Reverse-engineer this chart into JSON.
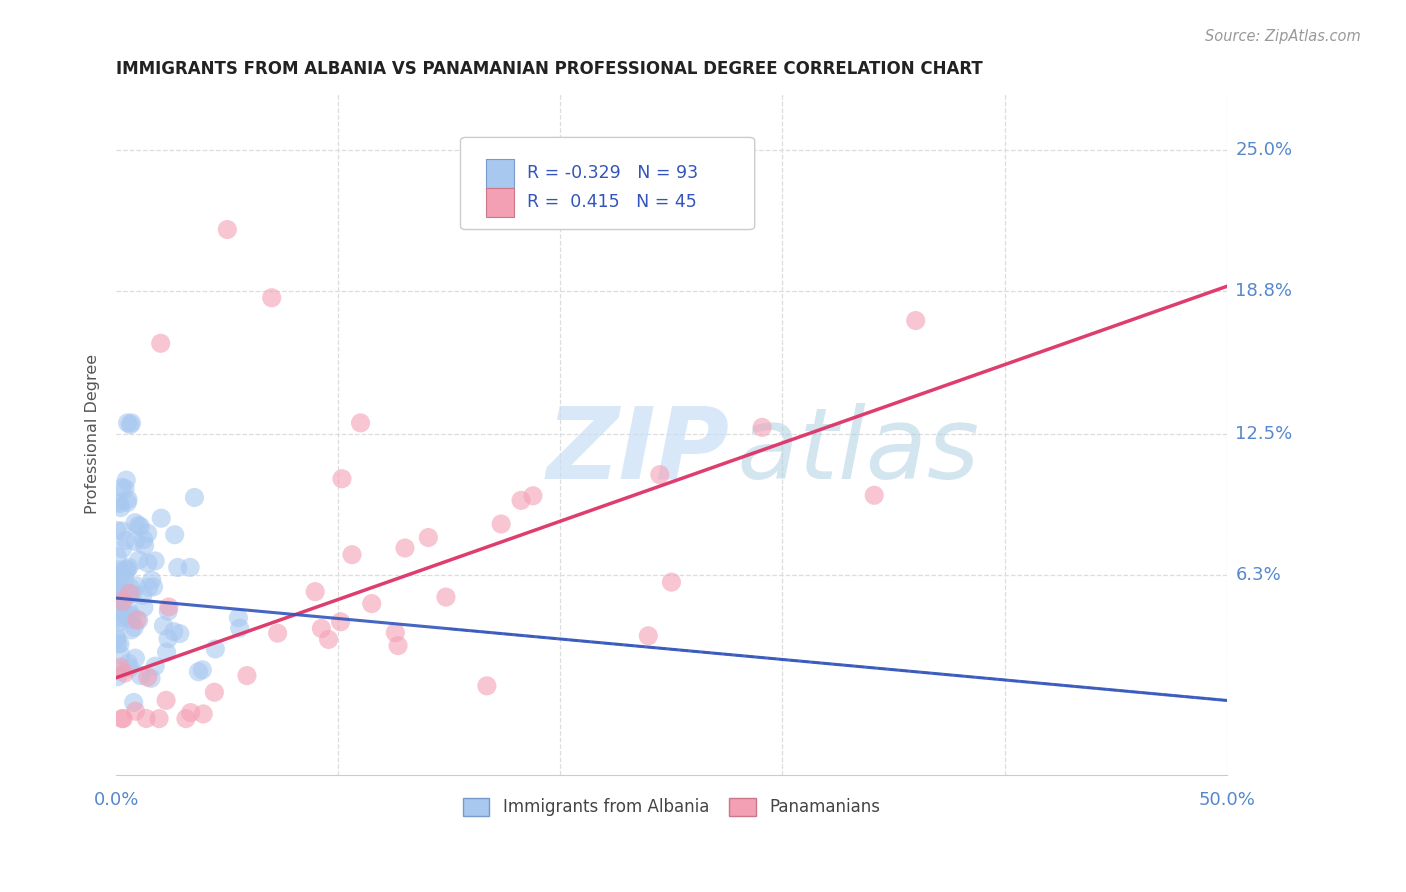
{
  "title": "IMMIGRANTS FROM ALBANIA VS PANAMANIAN PROFESSIONAL DEGREE CORRELATION CHART",
  "source": "Source: ZipAtlas.com",
  "ylabel": "Professional Degree",
  "ytick_labels": [
    "25.0%",
    "18.8%",
    "12.5%",
    "6.3%"
  ],
  "ytick_values": [
    0.25,
    0.188,
    0.125,
    0.063
  ],
  "xlim": [
    0.0,
    0.5
  ],
  "ylim": [
    -0.025,
    0.275
  ],
  "albania_color": "#a8c8f0",
  "albania_edge_color": "#7799cc",
  "panama_color": "#f4a0b4",
  "panama_edge_color": "#cc7788",
  "albania_trend_color": "#3355bb",
  "panama_trend_color": "#dd3366",
  "grid_color": "#dddddd",
  "tick_color": "#5588cc",
  "title_color": "#222222",
  "source_color": "#999999",
  "ylabel_color": "#555555",
  "background_color": "#ffffff",
  "watermark_zip_color": "#c5ddf5",
  "watermark_atlas_color": "#a8cce0",
  "legend_text_color": "#3355bb",
  "legend_box_edge": "#cccccc"
}
